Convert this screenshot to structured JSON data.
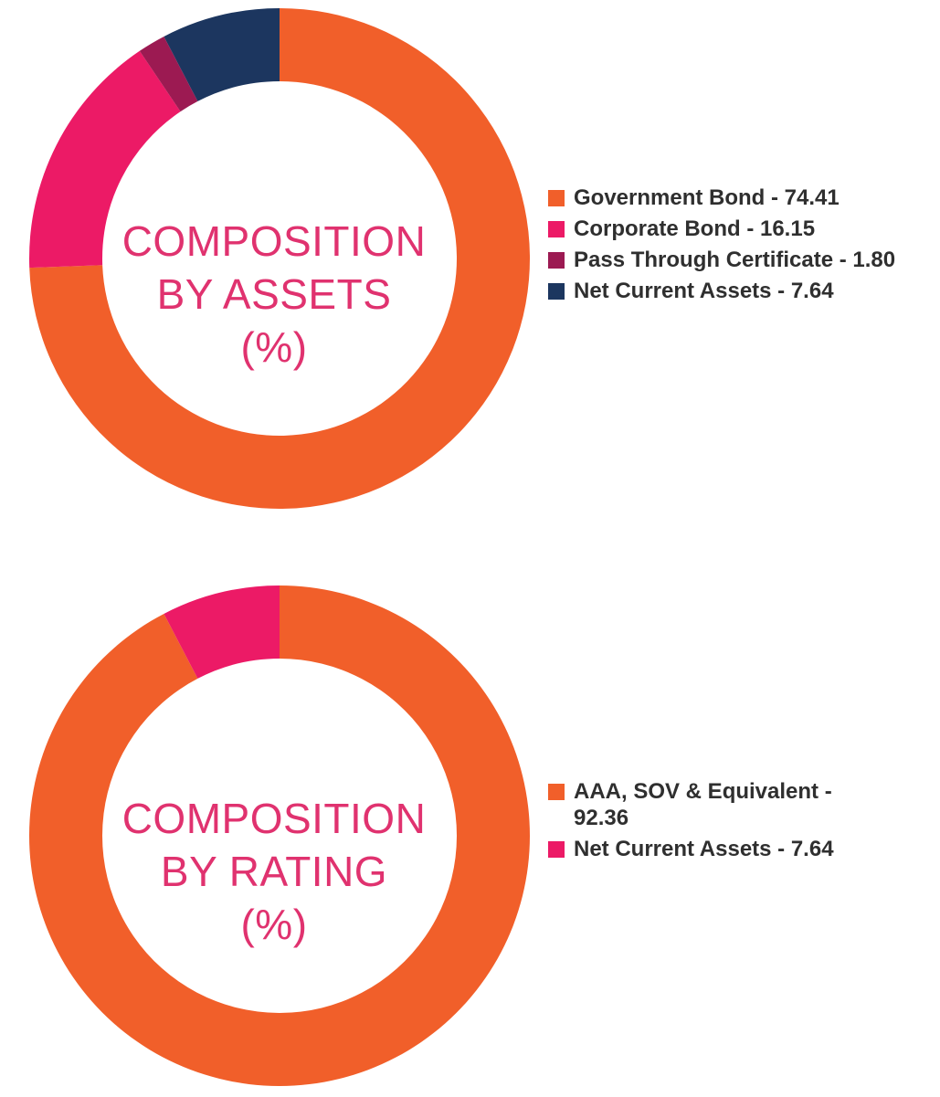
{
  "chart_data": [
    {
      "type": "pie",
      "center_label": [
        "COMPOSITION",
        "BY ASSETS",
        "(%)"
      ],
      "slices": [
        {
          "name": "Government Bond",
          "value": 74.41,
          "color": "#f15f2a",
          "legend_label": "Government Bond - 74.41"
        },
        {
          "name": "Corporate Bond",
          "value": 16.15,
          "color": "#ec1a66",
          "legend_label": "Corporate Bond - 16.15"
        },
        {
          "name": "Pass Through Certificate",
          "value": 1.8,
          "color": "#9c1a52",
          "legend_label": "Pass Through Certificate - 1.80"
        },
        {
          "name": "Net Current Assets",
          "value": 7.64,
          "color": "#1c365f",
          "legend_label": "Net Current Assets - 7.64"
        }
      ],
      "legend_position": "right"
    },
    {
      "type": "pie",
      "center_label": [
        "COMPOSITION",
        "BY RATING",
        "(%)"
      ],
      "slices": [
        {
          "name": "AAA, SOV & Equivalent",
          "value": 92.36,
          "color": "#f15f2a",
          "legend_label": "AAA, SOV & Equivalent - 92.36"
        },
        {
          "name": "Net Current Assets",
          "value": 7.64,
          "color": "#ec1a66",
          "legend_label": "Net Current Assets - 7.64"
        }
      ],
      "legend_position": "right"
    }
  ]
}
